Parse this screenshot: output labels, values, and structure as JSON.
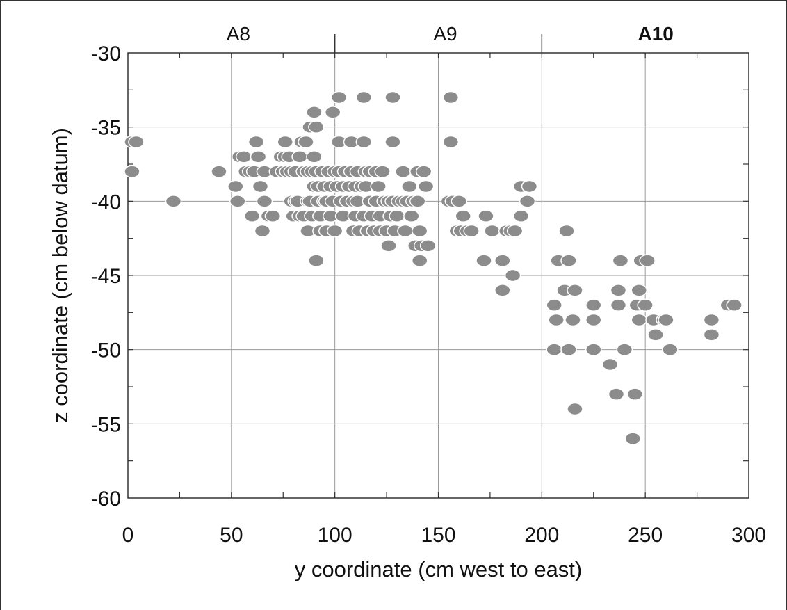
{
  "chart_data": {
    "type": "scatter",
    "title": "",
    "xlabel": "y coordinate (cm west to east)",
    "ylabel": "z coordinate (cm below datum)",
    "xlim": [
      0,
      300
    ],
    "ylim": [
      -60,
      -30
    ],
    "x_ticks": [
      0,
      50,
      100,
      150,
      200,
      250,
      300
    ],
    "y_ticks": [
      -30,
      -35,
      -40,
      -45,
      -50,
      -55,
      -60
    ],
    "x_tick_labels": [
      "0",
      "50",
      "100",
      "150",
      "200",
      "250",
      "300"
    ],
    "y_tick_labels": [
      "-30",
      "-35",
      "-40",
      "-45",
      "-50",
      "-55",
      "-60"
    ],
    "grid": true,
    "marker_color": "#8c8c8c",
    "sections": [
      {
        "label": "A8",
        "from": 0,
        "to": 100,
        "bold": false
      },
      {
        "label": "A9",
        "from": 100,
        "to": 200,
        "bold": false
      },
      {
        "label": "A10",
        "from": 200,
        "to": 300,
        "bold": true
      }
    ],
    "points": [
      [
        2,
        -36
      ],
      [
        4,
        -36
      ],
      [
        2,
        -38
      ],
      [
        22,
        -40
      ],
      [
        44,
        -38
      ],
      [
        52,
        -39
      ],
      [
        53,
        -40
      ],
      [
        54,
        -37
      ],
      [
        56,
        -37
      ],
      [
        57,
        -38
      ],
      [
        59,
        -38
      ],
      [
        60,
        -41
      ],
      [
        61,
        -38
      ],
      [
        62,
        -36
      ],
      [
        63,
        -37
      ],
      [
        64,
        -39
      ],
      [
        65,
        -42
      ],
      [
        66,
        -38
      ],
      [
        66,
        -40
      ],
      [
        68,
        -41
      ],
      [
        70,
        -41
      ],
      [
        72,
        -38
      ],
      [
        74,
        -37
      ],
      [
        75,
        -38
      ],
      [
        76,
        -36
      ],
      [
        76,
        -37
      ],
      [
        77,
        -38
      ],
      [
        78,
        -37
      ],
      [
        79,
        -40
      ],
      [
        79,
        -38
      ],
      [
        80,
        -41
      ],
      [
        81,
        -40
      ],
      [
        81,
        -38
      ],
      [
        82,
        -40
      ],
      [
        83,
        -37
      ],
      [
        83,
        -41
      ],
      [
        84,
        -36
      ],
      [
        85,
        -38
      ],
      [
        85,
        -41
      ],
      [
        86,
        -36
      ],
      [
        87,
        -38
      ],
      [
        87,
        -40
      ],
      [
        87,
        -42
      ],
      [
        88,
        -35
      ],
      [
        88,
        -40
      ],
      [
        89,
        -38
      ],
      [
        89,
        -41
      ],
      [
        90,
        -34
      ],
      [
        90,
        -37
      ],
      [
        90,
        -39
      ],
      [
        91,
        -35
      ],
      [
        91,
        -38
      ],
      [
        91,
        -44
      ],
      [
        92,
        -40
      ],
      [
        92,
        -39
      ],
      [
        93,
        -41
      ],
      [
        93,
        -42
      ],
      [
        94,
        -38
      ],
      [
        95,
        -40
      ],
      [
        95,
        -39
      ],
      [
        96,
        -40
      ],
      [
        96,
        -42
      ],
      [
        97,
        -38
      ],
      [
        98,
        -39
      ],
      [
        98,
        -41
      ],
      [
        99,
        -34
      ],
      [
        99,
        -40
      ],
      [
        100,
        -38
      ],
      [
        100,
        -42
      ],
      [
        101,
        -39
      ],
      [
        102,
        -33
      ],
      [
        102,
        -36
      ],
      [
        102,
        -38
      ],
      [
        103,
        -40
      ],
      [
        104,
        -39
      ],
      [
        104,
        -41
      ],
      [
        105,
        -38
      ],
      [
        106,
        -40
      ],
      [
        107,
        -39
      ],
      [
        108,
        -36
      ],
      [
        108,
        -38
      ],
      [
        109,
        -40
      ],
      [
        109,
        -42
      ],
      [
        110,
        -41
      ],
      [
        110,
        -39
      ],
      [
        111,
        -38
      ],
      [
        111,
        -40
      ],
      [
        112,
        -42
      ],
      [
        113,
        -39
      ],
      [
        114,
        -33
      ],
      [
        114,
        -36
      ],
      [
        114,
        -41
      ],
      [
        115,
        -38
      ],
      [
        115,
        -39
      ],
      [
        116,
        -42
      ],
      [
        117,
        -40
      ],
      [
        117,
        -38
      ],
      [
        118,
        -41
      ],
      [
        119,
        -42
      ],
      [
        120,
        -40
      ],
      [
        120,
        -38
      ],
      [
        121,
        -39
      ],
      [
        122,
        -41
      ],
      [
        122,
        -42
      ],
      [
        123,
        -38
      ],
      [
        124,
        -40
      ],
      [
        125,
        -42
      ],
      [
        126,
        -40
      ],
      [
        126,
        -43
      ],
      [
        127,
        -41
      ],
      [
        128,
        -33
      ],
      [
        128,
        -36
      ],
      [
        128,
        -40
      ],
      [
        129,
        -42
      ],
      [
        130,
        -41
      ],
      [
        131,
        -40
      ],
      [
        133,
        -38
      ],
      [
        133,
        -40
      ],
      [
        134,
        -42
      ],
      [
        135,
        -40
      ],
      [
        136,
        -39
      ],
      [
        137,
        -41
      ],
      [
        138,
        -40
      ],
      [
        139,
        -43
      ],
      [
        140,
        -40
      ],
      [
        140,
        -38
      ],
      [
        141,
        -42
      ],
      [
        141,
        -44
      ],
      [
        142,
        -43
      ],
      [
        143,
        -38
      ],
      [
        144,
        -39
      ],
      [
        145,
        -43
      ],
      [
        155,
        -40
      ],
      [
        156,
        -33
      ],
      [
        156,
        -36
      ],
      [
        157,
        -40
      ],
      [
        159,
        -42
      ],
      [
        160,
        -40
      ],
      [
        161,
        -42
      ],
      [
        162,
        -41
      ],
      [
        164,
        -42
      ],
      [
        166,
        -42
      ],
      [
        172,
        -44
      ],
      [
        173,
        -41
      ],
      [
        176,
        -42
      ],
      [
        181,
        -44
      ],
      [
        181,
        -46
      ],
      [
        183,
        -42
      ],
      [
        185,
        -42
      ],
      [
        186,
        -45
      ],
      [
        187,
        -42
      ],
      [
        190,
        -39
      ],
      [
        190,
        -41
      ],
      [
        193,
        -40
      ],
      [
        194,
        -39
      ],
      [
        206,
        -47
      ],
      [
        206,
        -50
      ],
      [
        207,
        -48
      ],
      [
        208,
        -44
      ],
      [
        211,
        -46
      ],
      [
        212,
        -42
      ],
      [
        213,
        -44
      ],
      [
        213,
        -50
      ],
      [
        215,
        -48
      ],
      [
        216,
        -46
      ],
      [
        216,
        -54
      ],
      [
        225,
        -47
      ],
      [
        225,
        -48
      ],
      [
        225,
        -50
      ],
      [
        233,
        -51
      ],
      [
        236,
        -53
      ],
      [
        237,
        -46
      ],
      [
        237,
        -47
      ],
      [
        238,
        -44
      ],
      [
        240,
        -50
      ],
      [
        244,
        -56
      ],
      [
        245,
        -53
      ],
      [
        246,
        -47
      ],
      [
        247,
        -46
      ],
      [
        247,
        -48
      ],
      [
        248,
        -44
      ],
      [
        250,
        -47
      ],
      [
        251,
        -44
      ],
      [
        254,
        -48
      ],
      [
        255,
        -49
      ],
      [
        259,
        -48
      ],
      [
        260,
        -48
      ],
      [
        262,
        -50
      ],
      [
        282,
        -48
      ],
      [
        282,
        -49
      ],
      [
        290,
        -47
      ],
      [
        293,
        -47
      ]
    ]
  }
}
